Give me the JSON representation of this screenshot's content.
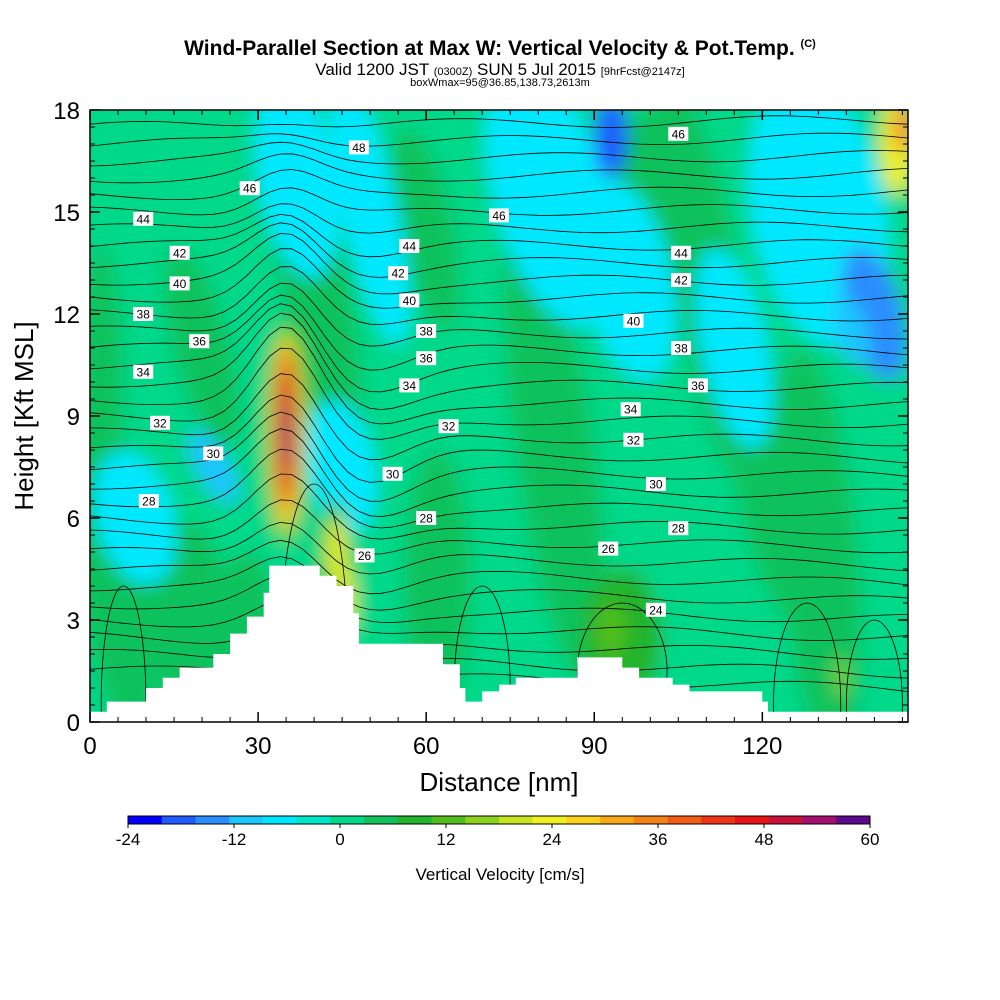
{
  "header": {
    "title": "Wind-Parallel Section at Max W: Vertical Velocity & Pot.Temp.",
    "title_mark": "(C)",
    "valid_prefix": "Valid 1200 JST",
    "valid_utc": "(0300Z)",
    "valid_date": "SUN 5 Jul 2015",
    "forecast": "[9hrFcst@2147z]",
    "box_info": "boxWmax=95@36.85,138.73,2613m"
  },
  "chart_data": {
    "type": "heatmap",
    "xlabel": "Distance [nm]",
    "ylabel": "Height [Kft MSL]",
    "xlim": [
      0,
      146
    ],
    "ylim": [
      0,
      18
    ],
    "xticks": [
      0,
      30,
      60,
      90,
      120
    ],
    "yticks": [
      0,
      3,
      6,
      9,
      12,
      15,
      18
    ],
    "colorbar": {
      "label": "Vertical Velocity [cm/s]",
      "min": -24,
      "max": 60,
      "step": 4,
      "tick_values": [
        -24,
        -12,
        0,
        12,
        24,
        36,
        48,
        60
      ],
      "tick_labels": [
        "-24",
        "-12",
        "0",
        "12",
        "24",
        "36",
        "48",
        "60"
      ],
      "colors": [
        "#0000ff",
        "#1e5cff",
        "#2a8dff",
        "#1cc6ff",
        "#00e8ff",
        "#00e6c8",
        "#00d88a",
        "#11c25c",
        "#22b42c",
        "#52be1e",
        "#8ad21e",
        "#c6e41c",
        "#f0f020",
        "#fbd21a",
        "#f9a814",
        "#f58216",
        "#f25d16",
        "#ee3416",
        "#e81418",
        "#c8103a",
        "#a40e6e",
        "#5a0a8c"
      ]
    },
    "terrain": [
      [
        0,
        0.3
      ],
      [
        3,
        0.6
      ],
      [
        10,
        1.0
      ],
      [
        13,
        1.3
      ],
      [
        16,
        1.6
      ],
      [
        22,
        2.0
      ],
      [
        25,
        2.6
      ],
      [
        28,
        3.1
      ],
      [
        31,
        3.8
      ],
      [
        32,
        4.6
      ],
      [
        38,
        4.6
      ],
      [
        41,
        4.3
      ],
      [
        44,
        4.0
      ],
      [
        47,
        3.2
      ],
      [
        48,
        2.3
      ],
      [
        60,
        2.3
      ],
      [
        63,
        1.7
      ],
      [
        66,
        1.0
      ],
      [
        67,
        0.6
      ],
      [
        70,
        0.9
      ],
      [
        73,
        1.1
      ],
      [
        76,
        1.3
      ],
      [
        86,
        1.3
      ],
      [
        87,
        1.9
      ],
      [
        94,
        1.9
      ],
      [
        95,
        1.6
      ],
      [
        98,
        1.3
      ],
      [
        104,
        1.1
      ],
      [
        107,
        0.9
      ],
      [
        119,
        0.9
      ],
      [
        120,
        0.6
      ],
      [
        121,
        0.3
      ],
      [
        146,
        0.3
      ]
    ],
    "theta_labels": [
      {
        "text": "48",
        "x": 48,
        "y": 16.9
      },
      {
        "text": "46",
        "x": 28.5,
        "y": 15.7
      },
      {
        "text": "46",
        "x": 73,
        "y": 14.9
      },
      {
        "text": "46",
        "x": 105,
        "y": 17.3
      },
      {
        "text": "44",
        "x": 9.5,
        "y": 14.8
      },
      {
        "text": "44",
        "x": 57,
        "y": 14.0
      },
      {
        "text": "44",
        "x": 105.5,
        "y": 13.8
      },
      {
        "text": "42",
        "x": 16,
        "y": 13.8
      },
      {
        "text": "42",
        "x": 55,
        "y": 13.2
      },
      {
        "text": "42",
        "x": 105.5,
        "y": 13.0
      },
      {
        "text": "40",
        "x": 16,
        "y": 12.9
      },
      {
        "text": "40",
        "x": 57,
        "y": 12.4
      },
      {
        "text": "40",
        "x": 97,
        "y": 11.8
      },
      {
        "text": "38",
        "x": 9.5,
        "y": 12.0
      },
      {
        "text": "38",
        "x": 60,
        "y": 11.5
      },
      {
        "text": "38",
        "x": 105.5,
        "y": 11.0
      },
      {
        "text": "36",
        "x": 19.5,
        "y": 11.2
      },
      {
        "text": "36",
        "x": 60,
        "y": 10.7
      },
      {
        "text": "36",
        "x": 108.5,
        "y": 9.9
      },
      {
        "text": "34",
        "x": 9.5,
        "y": 10.3
      },
      {
        "text": "34",
        "x": 57,
        "y": 9.9
      },
      {
        "text": "34",
        "x": 96.5,
        "y": 9.2
      },
      {
        "text": "32",
        "x": 12.5,
        "y": 8.8
      },
      {
        "text": "32",
        "x": 64,
        "y": 8.7
      },
      {
        "text": "32",
        "x": 97,
        "y": 8.3
      },
      {
        "text": "30",
        "x": 22,
        "y": 7.9
      },
      {
        "text": "30",
        "x": 54,
        "y": 7.3
      },
      {
        "text": "30",
        "x": 101,
        "y": 7.0
      },
      {
        "text": "28",
        "x": 10.5,
        "y": 6.5
      },
      {
        "text": "28",
        "x": 60,
        "y": 6.0
      },
      {
        "text": "28",
        "x": 105,
        "y": 5.7
      },
      {
        "text": "26",
        "x": 49,
        "y": 4.9
      },
      {
        "text": "26",
        "x": 92.5,
        "y": 5.1
      },
      {
        "text": "24",
        "x": 101,
        "y": 3.3
      }
    ]
  }
}
